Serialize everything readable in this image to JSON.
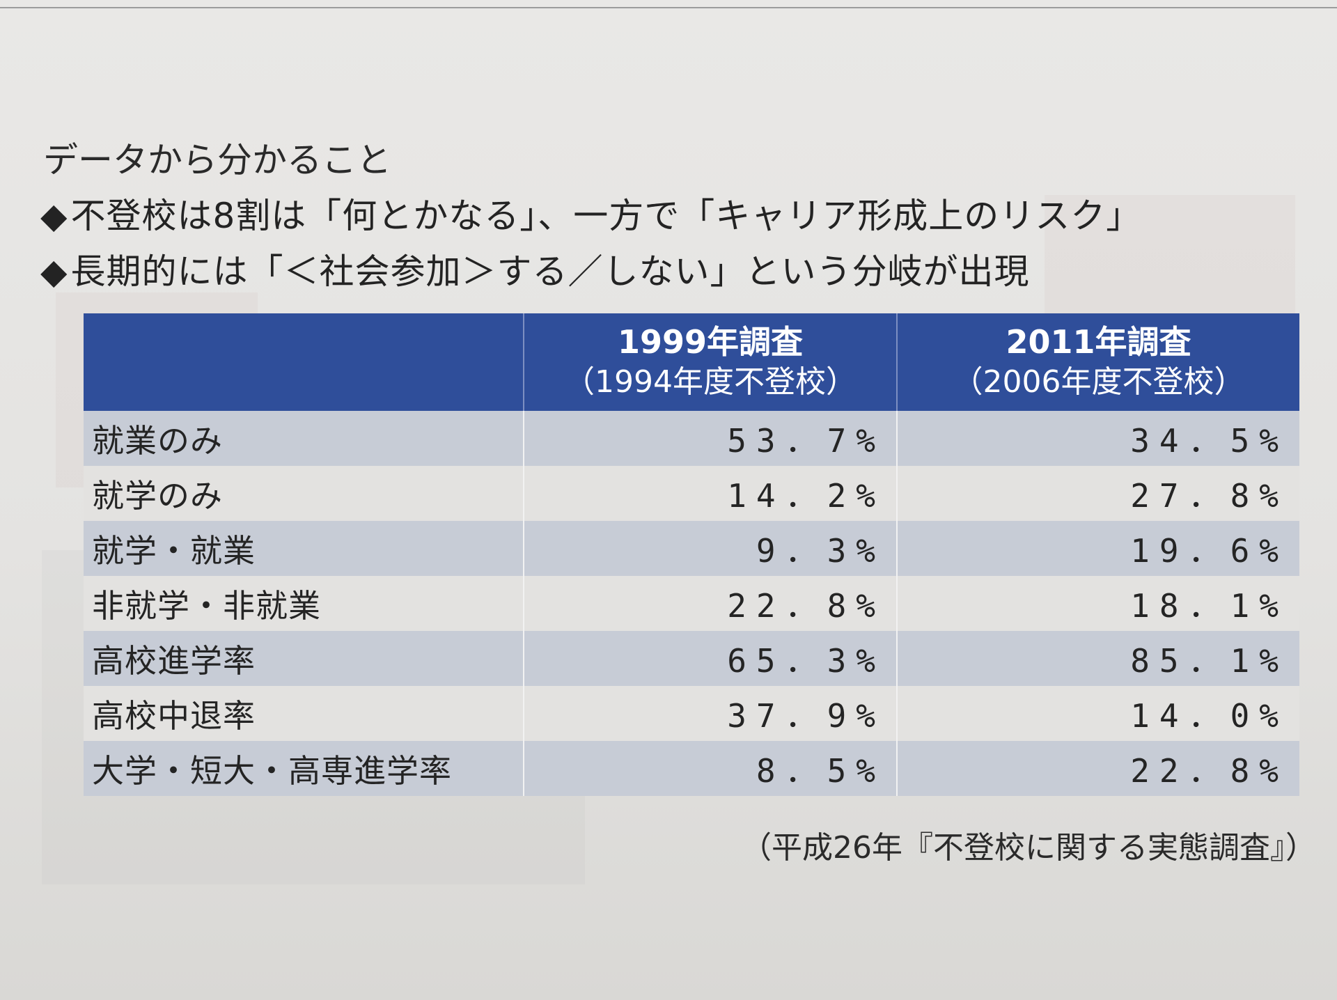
{
  "heading": "データから分かること",
  "bullets": [
    "不登校は8割は「何とかなる」、一方で「キャリア形成上のリスク」",
    "長期的には「＜社会参加＞する／しない」という分岐が出現"
  ],
  "bullet_symbol": "◆",
  "table": {
    "header": {
      "label": "",
      "col1_line1": "1999年調査",
      "col1_line2": "（1994年度不登校）",
      "col2_line1": "2011年調査",
      "col2_line2": "（2006年度不登校）"
    },
    "rows": [
      {
        "label": "就業のみ",
        "v1999": "53．7%",
        "v2011": "34．5%"
      },
      {
        "label": "就学のみ",
        "v1999": "14．2%",
        "v2011": "27．8%"
      },
      {
        "label": "就学・就業",
        "v1999": "9．3%",
        "v2011": "19．6%"
      },
      {
        "label": "非就学・非就業",
        "v1999": "22．8%",
        "v2011": "18．1%"
      },
      {
        "label": "高校進学率",
        "v1999": "65．3%",
        "v2011": "85．1%"
      },
      {
        "label": "高校中退率",
        "v1999": "37．9%",
        "v2011": "14．0%"
      },
      {
        "label": "大学・短大・高専進学率",
        "v1999": "8．5%",
        "v2011": "22．8%"
      }
    ]
  },
  "source": "（平成26年『不登校に関する実態調査』）",
  "colors": {
    "header_bg": "#2f4e9a",
    "row_shade": "#c7ccd6",
    "row_plain": "#e3e2e0"
  }
}
